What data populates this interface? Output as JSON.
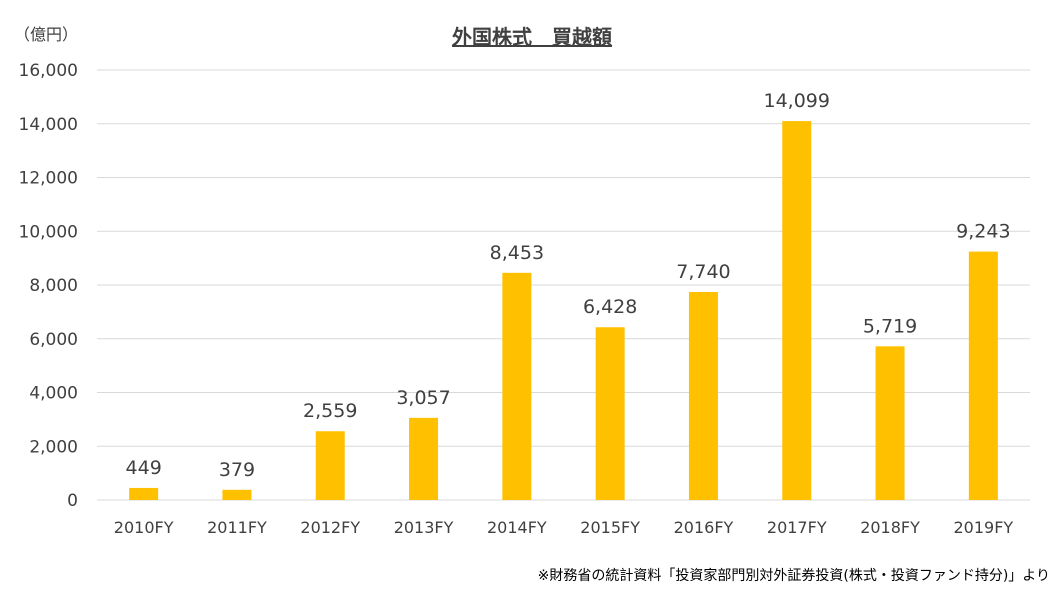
{
  "chart_data": {
    "type": "bar",
    "title": "外国株式　買越額",
    "unit_label": "（億円）",
    "categories": [
      "2010FY",
      "2011FY",
      "2012FY",
      "2013FY",
      "2014FY",
      "2015FY",
      "2016FY",
      "2017FY",
      "2018FY",
      "2019FY"
    ],
    "values": [
      449,
      379,
      2559,
      3057,
      8453,
      6428,
      7740,
      14099,
      5719,
      9243
    ],
    "value_labels": [
      "449",
      "379",
      "2,559",
      "3,057",
      "8,453",
      "6,428",
      "7,740",
      "14,099",
      "5,719",
      "9,243"
    ],
    "y_ticks": [
      0,
      2000,
      4000,
      6000,
      8000,
      10000,
      12000,
      14000,
      16000
    ],
    "y_tick_labels": [
      "0",
      "2,000",
      "4,000",
      "6,000",
      "8,000",
      "10,000",
      "12,000",
      "14,000",
      "16,000"
    ],
    "ylim": [
      0,
      16000
    ],
    "grid": true,
    "legend": "none",
    "bar_color": "#FFC000",
    "source_note": "※財務省の統計資料「投資家部門別対外証券投資(株式・投資ファンド持分)」より"
  }
}
